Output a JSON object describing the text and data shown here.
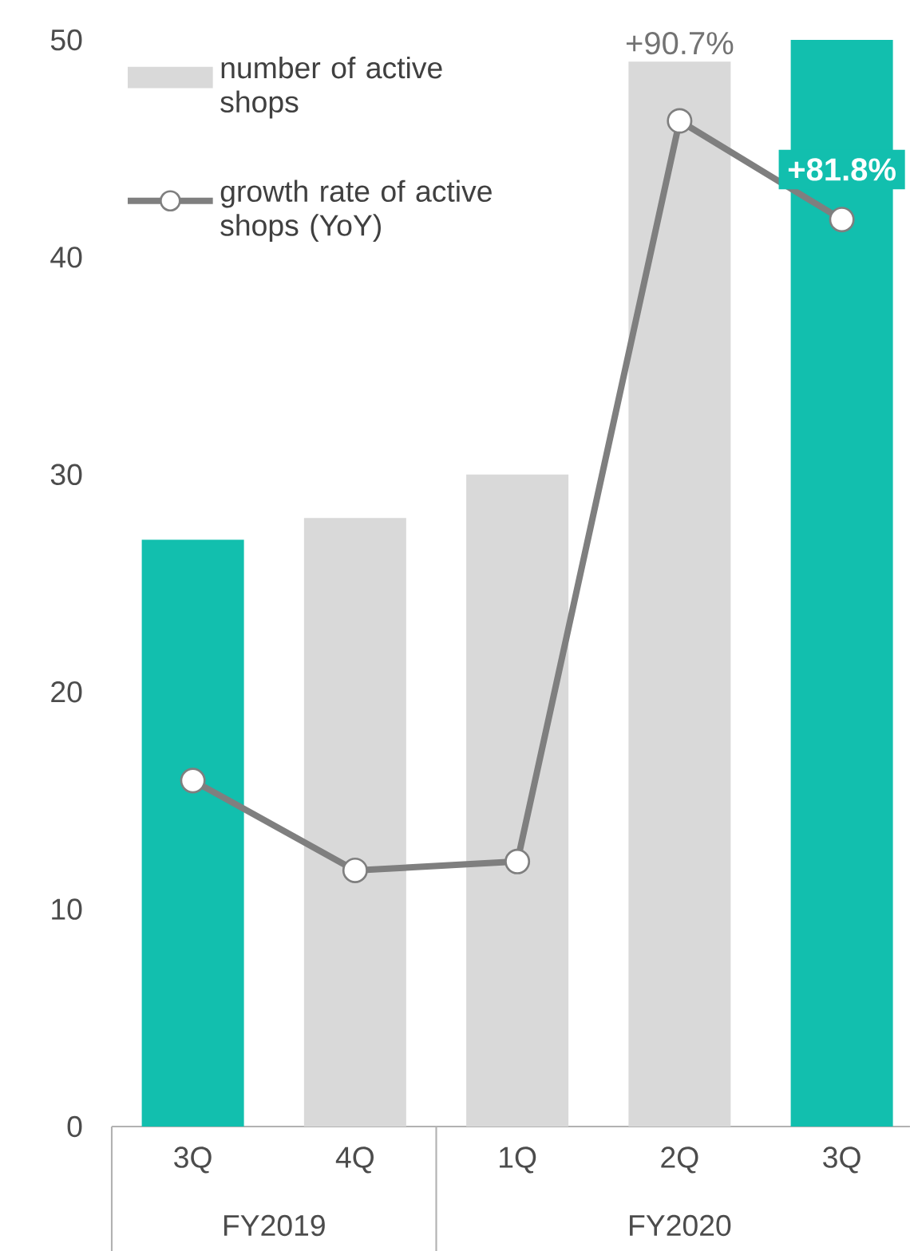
{
  "chart_data": {
    "type": "bar",
    "categories": [
      "3Q",
      "4Q",
      "1Q",
      "2Q",
      "3Q"
    ],
    "annotations": [
      "FY2019",
      "FY2020"
    ],
    "ylim": [
      0,
      50
    ],
    "yticks": [
      0,
      10,
      20,
      30,
      40,
      50
    ],
    "grid": false,
    "legend": "top left",
    "y2lim": [
      0,
      98
    ],
    "series": [
      {
        "name": "number of active shops",
        "color": "#d9d9d9",
        "colors": [
          "#12bfae",
          "#d9d9d9",
          "#d9d9d9",
          "#d9d9d9",
          "#12bfae"
        ],
        "values": [
          27,
          28,
          30,
          49,
          50
        ]
      },
      {
        "name": "growth rate of active shops (YoY)",
        "type": "line",
        "axis": "y2",
        "color": "#7f7f7f",
        "marker": "circle",
        "line_style": "solid",
        "values": [
          31.2,
          23.1,
          23.9,
          90.7,
          81.8
        ],
        "value_labels": [
          null,
          null,
          null,
          "+90.7%",
          "+81.8%"
        ]
      }
    ]
  }
}
